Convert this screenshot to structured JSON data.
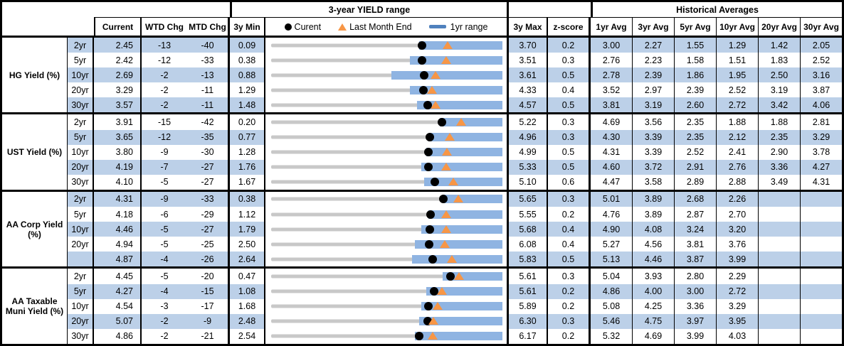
{
  "header": {
    "chart_group_title": "3-year YIELD range",
    "historical_group_title": "Historical Averages",
    "columns": {
      "current": "Current",
      "wtd": "WTD Chg",
      "mtd": "MTD Chg",
      "min3y": "3y Min",
      "max3y": "3y Max",
      "zscore": "z-score",
      "avgs": [
        "1yr Avg",
        "3yr Avg",
        "5yr Avg",
        "10yr Avg",
        "20yr Avg",
        "30yr Avg"
      ]
    },
    "legend": {
      "current": "Curent",
      "last_month": "Last Month End",
      "range": "1yr range"
    }
  },
  "colors": {
    "row_stripe": "#BCD0E8",
    "range_bar_blue": "#8FB4E2",
    "legend_dash_blue": "#4F81BD",
    "last_month_orange": "#F79646",
    "track_gray": "#C8C8C8",
    "current_dot_black": "#000000"
  },
  "chart_data": {
    "type": "range-dot-strip",
    "note": "Each row: gray track spans 3y Min..3y Max; blue bar is 1yr range (ends at 3y max); black dot = Current; orange triangle = Last Month End (Current - MTD Chg bps). bar_lo is the 1yr-range start as a fraction of the 3y span.",
    "groups": [
      {
        "label": "HG Yield (%)",
        "rows": [
          {
            "tenor": "2yr",
            "current": "2.45",
            "wtd": "-13",
            "mtd": "-40",
            "min": "0.09",
            "max": "3.70",
            "z": "0.2",
            "avgs": [
              "3.00",
              "2.27",
              "1.55",
              "1.29",
              "1.42",
              "2.05"
            ],
            "bar_lo": 0.64
          },
          {
            "tenor": "5yr",
            "current": "2.42",
            "wtd": "-12",
            "mtd": "-33",
            "min": "0.38",
            "max": "3.51",
            "z": "0.3",
            "avgs": [
              "2.76",
              "2.23",
              "1.58",
              "1.51",
              "1.83",
              "2.52"
            ],
            "bar_lo": 0.6
          },
          {
            "tenor": "10yr",
            "current": "2.69",
            "wtd": "-2",
            "mtd": "-13",
            "min": "0.88",
            "max": "3.61",
            "z": "0.5",
            "avgs": [
              "2.78",
              "2.39",
              "1.86",
              "1.95",
              "2.50",
              "3.16"
            ],
            "bar_lo": 0.52
          },
          {
            "tenor": "20yr",
            "current": "3.29",
            "wtd": "-2",
            "mtd": "-11",
            "min": "1.29",
            "max": "4.33",
            "z": "0.4",
            "avgs": [
              "3.52",
              "2.97",
              "2.39",
              "2.52",
              "3.19",
              "3.87"
            ],
            "bar_lo": 0.6
          },
          {
            "tenor": "30yr",
            "current": "3.57",
            "wtd": "-2",
            "mtd": "-11",
            "min": "1.48",
            "max": "4.57",
            "z": "0.5",
            "avgs": [
              "3.81",
              "3.19",
              "2.60",
              "2.72",
              "3.42",
              "4.06"
            ],
            "bar_lo": 0.63
          }
        ]
      },
      {
        "label": "UST Yield (%)",
        "rows": [
          {
            "tenor": "2yr",
            "current": "3.91",
            "wtd": "-15",
            "mtd": "-42",
            "min": "0.20",
            "max": "5.22",
            "z": "0.3",
            "avgs": [
              "4.69",
              "3.56",
              "2.35",
              "1.88",
              "1.88",
              "2.81"
            ],
            "bar_lo": 0.73
          },
          {
            "tenor": "5yr",
            "current": "3.65",
            "wtd": "-12",
            "mtd": "-35",
            "min": "0.77",
            "max": "4.96",
            "z": "0.3",
            "avgs": [
              "4.30",
              "3.39",
              "2.35",
              "2.12",
              "2.35",
              "3.29"
            ],
            "bar_lo": 0.68
          },
          {
            "tenor": "10yr",
            "current": "3.80",
            "wtd": "-9",
            "mtd": "-30",
            "min": "1.28",
            "max": "4.99",
            "z": "0.5",
            "avgs": [
              "4.31",
              "3.39",
              "2.52",
              "2.41",
              "2.90",
              "3.78"
            ],
            "bar_lo": 0.67
          },
          {
            "tenor": "20yr",
            "current": "4.19",
            "wtd": "-7",
            "mtd": "-27",
            "min": "1.76",
            "max": "5.33",
            "z": "0.5",
            "avgs": [
              "4.60",
              "3.72",
              "2.91",
              "2.76",
              "3.36",
              "4.27"
            ],
            "bar_lo": 0.65
          },
          {
            "tenor": "30yr",
            "current": "4.10",
            "wtd": "-5",
            "mtd": "-27",
            "min": "1.67",
            "max": "5.10",
            "z": "0.6",
            "avgs": [
              "4.47",
              "3.58",
              "2.89",
              "2.88",
              "3.49",
              "4.31"
            ],
            "bar_lo": 0.66
          }
        ]
      },
      {
        "label": "AA Corp Yield (%)",
        "rows": [
          {
            "tenor": "2yr",
            "current": "4.31",
            "wtd": "-9",
            "mtd": "-33",
            "min": "0.38",
            "max": "5.65",
            "z": "0.3",
            "avgs": [
              "5.01",
              "3.89",
              "2.68",
              "2.26",
              "",
              ""
            ],
            "bar_lo": 0.74
          },
          {
            "tenor": "5yr",
            "current": "4.18",
            "wtd": "-6",
            "mtd": "-29",
            "min": "1.12",
            "max": "5.55",
            "z": "0.2",
            "avgs": [
              "4.76",
              "3.89",
              "2.87",
              "2.70",
              "",
              ""
            ],
            "bar_lo": 0.68
          },
          {
            "tenor": "10yr",
            "current": "4.46",
            "wtd": "-5",
            "mtd": "-27",
            "min": "1.79",
            "max": "5.68",
            "z": "0.4",
            "avgs": [
              "4.90",
              "4.08",
              "3.24",
              "3.20",
              "",
              ""
            ],
            "bar_lo": 0.65
          },
          {
            "tenor": "20yr",
            "current": "4.94",
            "wtd": "-5",
            "mtd": "-25",
            "min": "2.50",
            "max": "6.08",
            "z": "0.4",
            "avgs": [
              "5.27",
              "4.56",
              "3.81",
              "3.76",
              "",
              ""
            ],
            "bar_lo": 0.62
          },
          {
            "tenor": "",
            "current": "4.87",
            "wtd": "-4",
            "mtd": "-26",
            "min": "2.64",
            "max": "5.83",
            "z": "0.5",
            "avgs": [
              "5.13",
              "4.46",
              "3.87",
              "3.99",
              "",
              ""
            ],
            "bar_lo": 0.61
          }
        ]
      },
      {
        "label": "AA Taxable Muni Yield (%)",
        "rows": [
          {
            "tenor": "2yr",
            "current": "4.45",
            "wtd": "-5",
            "mtd": "-20",
            "min": "0.47",
            "max": "5.61",
            "z": "0.3",
            "avgs": [
              "5.04",
              "3.93",
              "2.80",
              "2.29",
              "",
              ""
            ],
            "bar_lo": 0.74
          },
          {
            "tenor": "5yr",
            "current": "4.27",
            "wtd": "-4",
            "mtd": "-15",
            "min": "1.08",
            "max": "5.61",
            "z": "0.2",
            "avgs": [
              "4.86",
              "4.00",
              "3.00",
              "2.72",
              "",
              ""
            ],
            "bar_lo": 0.67
          },
          {
            "tenor": "10yr",
            "current": "4.54",
            "wtd": "-3",
            "mtd": "-17",
            "min": "1.68",
            "max": "5.89",
            "z": "0.2",
            "avgs": [
              "5.08",
              "4.25",
              "3.36",
              "3.29",
              "",
              ""
            ],
            "bar_lo": 0.65
          },
          {
            "tenor": "20yr",
            "current": "5.07",
            "wtd": "-2",
            "mtd": "-9",
            "min": "2.48",
            "max": "6.30",
            "z": "0.3",
            "avgs": [
              "5.46",
              "4.75",
              "3.97",
              "3.95",
              "",
              ""
            ],
            "bar_lo": 0.64
          },
          {
            "tenor": "30yr",
            "current": "4.86",
            "wtd": "-2",
            "mtd": "-21",
            "min": "2.54",
            "max": "6.17",
            "z": "0.2",
            "avgs": [
              "5.32",
              "4.69",
              "3.99",
              "4.03",
              "",
              ""
            ],
            "bar_lo": 0.62
          }
        ]
      }
    ]
  }
}
